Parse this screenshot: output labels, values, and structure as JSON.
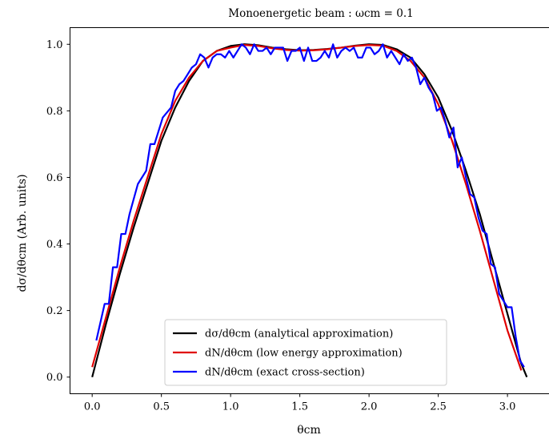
{
  "chart_data": {
    "type": "line",
    "title": "Monoenergetic beam : ωcm = 0.1",
    "xlabel": "θcm",
    "ylabel": "dσ/dθcm (Arb. units)",
    "xlim": [
      -0.16,
      3.3
    ],
    "ylim": [
      -0.05,
      1.05
    ],
    "xticks": [
      "0.0",
      "0.5",
      "1.0",
      "1.5",
      "2.0",
      "2.5",
      "3.0"
    ],
    "yticks": [
      "0.0",
      "0.2",
      "0.4",
      "0.6",
      "0.8",
      "1.0"
    ],
    "grid": false,
    "legend_position": "lower center",
    "series": [
      {
        "name": "dσ/dθcm (analytical approximation)",
        "color": "#000000",
        "x": [
          0.0,
          0.1,
          0.2,
          0.3,
          0.4,
          0.5,
          0.6,
          0.7,
          0.8,
          0.9,
          1.0,
          1.1,
          1.2,
          1.3,
          1.4,
          1.5,
          1.6,
          1.7,
          1.8,
          1.9,
          2.0,
          2.1,
          2.2,
          2.3,
          2.4,
          2.5,
          2.6,
          2.7,
          2.8,
          2.9,
          3.0,
          3.1,
          3.14
        ],
        "y": [
          0.0,
          0.16,
          0.31,
          0.45,
          0.58,
          0.71,
          0.81,
          0.89,
          0.95,
          0.98,
          0.995,
          1.0,
          0.997,
          0.99,
          0.985,
          0.982,
          0.983,
          0.986,
          0.99,
          0.996,
          1.0,
          0.998,
          0.985,
          0.96,
          0.91,
          0.84,
          0.74,
          0.62,
          0.49,
          0.34,
          0.19,
          0.04,
          0.0
        ]
      },
      {
        "name": "dN/dθcm (low energy approximation)",
        "color": "#e00000",
        "x": [
          0.0,
          0.1,
          0.2,
          0.3,
          0.4,
          0.5,
          0.6,
          0.7,
          0.8,
          0.9,
          1.0,
          1.1,
          1.2,
          1.3,
          1.4,
          1.5,
          1.6,
          1.7,
          1.8,
          1.9,
          2.0,
          2.1,
          2.2,
          2.3,
          2.4,
          2.5,
          2.6,
          2.7,
          2.8,
          2.9,
          3.0,
          3.1
        ],
        "y": [
          0.03,
          0.18,
          0.33,
          0.47,
          0.6,
          0.73,
          0.83,
          0.9,
          0.95,
          0.98,
          0.99,
          0.998,
          0.995,
          0.988,
          0.983,
          0.981,
          0.982,
          0.985,
          0.99,
          0.995,
          0.998,
          0.996,
          0.98,
          0.95,
          0.9,
          0.82,
          0.71,
          0.58,
          0.44,
          0.29,
          0.14,
          0.02
        ]
      },
      {
        "name": "dN/dθcm (exact cross-section)",
        "color": "#0000ff",
        "x": [
          0.03,
          0.09,
          0.12,
          0.15,
          0.18,
          0.21,
          0.24,
          0.27,
          0.33,
          0.39,
          0.42,
          0.45,
          0.48,
          0.51,
          0.57,
          0.6,
          0.63,
          0.66,
          0.69,
          0.72,
          0.75,
          0.78,
          0.81,
          0.84,
          0.87,
          0.9,
          0.93,
          0.96,
          0.99,
          1.02,
          1.05,
          1.08,
          1.11,
          1.14,
          1.17,
          1.2,
          1.23,
          1.26,
          1.29,
          1.32,
          1.35,
          1.38,
          1.41,
          1.44,
          1.47,
          1.5,
          1.53,
          1.56,
          1.59,
          1.62,
          1.65,
          1.68,
          1.71,
          1.74,
          1.77,
          1.8,
          1.83,
          1.86,
          1.89,
          1.92,
          1.95,
          1.98,
          2.01,
          2.04,
          2.07,
          2.1,
          2.13,
          2.16,
          2.19,
          2.22,
          2.25,
          2.28,
          2.31,
          2.34,
          2.37,
          2.4,
          2.43,
          2.46,
          2.49,
          2.52,
          2.55,
          2.58,
          2.61,
          2.64,
          2.67,
          2.7,
          2.73,
          2.76,
          2.79,
          2.82,
          2.85,
          2.88,
          2.91,
          2.94,
          2.97,
          3.0,
          3.03,
          3.06,
          3.09,
          3.12
        ],
        "y": [
          0.11,
          0.22,
          0.22,
          0.33,
          0.33,
          0.43,
          0.43,
          0.49,
          0.58,
          0.62,
          0.7,
          0.7,
          0.74,
          0.78,
          0.81,
          0.86,
          0.88,
          0.89,
          0.91,
          0.93,
          0.94,
          0.97,
          0.96,
          0.93,
          0.96,
          0.97,
          0.97,
          0.96,
          0.98,
          0.96,
          0.98,
          1.0,
          0.99,
          0.97,
          1.0,
          0.98,
          0.98,
          0.99,
          0.97,
          0.99,
          0.99,
          0.99,
          0.95,
          0.98,
          0.98,
          0.99,
          0.95,
          0.99,
          0.95,
          0.95,
          0.96,
          0.98,
          0.96,
          1.0,
          0.96,
          0.98,
          0.99,
          0.98,
          0.99,
          0.96,
          0.96,
          0.99,
          0.99,
          0.97,
          0.98,
          1.0,
          0.96,
          0.98,
          0.96,
          0.94,
          0.97,
          0.95,
          0.96,
          0.93,
          0.88,
          0.9,
          0.87,
          0.85,
          0.8,
          0.81,
          0.77,
          0.72,
          0.75,
          0.63,
          0.66,
          0.6,
          0.55,
          0.54,
          0.48,
          0.44,
          0.43,
          0.34,
          0.33,
          0.25,
          0.23,
          0.21,
          0.21,
          0.12,
          0.05,
          0.03
        ]
      }
    ]
  }
}
